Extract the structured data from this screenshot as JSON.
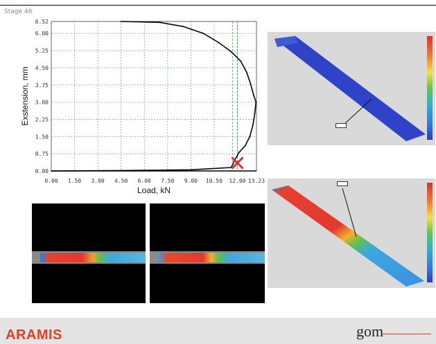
{
  "stage_label": "Stage 46",
  "brand": {
    "name": "ARAMIS",
    "logo_text": "gom",
    "accent_color": "#e0411f"
  },
  "chart_data": {
    "type": "line",
    "xlabel": "Load, kN",
    "ylabel": "Exstension, mm",
    "xlim": [
      0,
      13.23
    ],
    "ylim": [
      0,
      6.52
    ],
    "x_ticks": [
      "0.00",
      "1.50",
      "3.00",
      "4.50",
      "6.00",
      "7.50",
      "9.00",
      "10.50",
      "12.00",
      "13.23"
    ],
    "y_ticks": [
      "0.00",
      "0.75",
      "1.50",
      "2.25",
      "3.00",
      "3.75",
      "4.50",
      "5.25",
      "6.00",
      "6.52"
    ],
    "grid": true,
    "series": [
      {
        "color": "#000000",
        "points": [
          [
            4.5,
            6.52
          ],
          [
            7.0,
            6.48
          ],
          [
            8.5,
            6.3
          ],
          [
            9.8,
            6.0
          ],
          [
            10.8,
            5.6
          ],
          [
            11.6,
            5.2
          ],
          [
            12.2,
            4.8
          ],
          [
            12.6,
            4.3
          ],
          [
            12.85,
            3.8
          ],
          [
            13.05,
            3.3
          ],
          [
            13.2,
            3.0
          ],
          [
            13.12,
            2.5
          ],
          [
            13.0,
            2.0
          ],
          [
            12.8,
            1.5
          ],
          [
            12.5,
            1.1
          ],
          [
            12.1,
            0.8
          ],
          [
            11.85,
            0.5
          ],
          [
            11.6,
            0.15
          ],
          [
            9.0,
            0.05
          ],
          [
            5.0,
            0.02
          ],
          [
            0.0,
            0.0
          ]
        ]
      }
    ],
    "marker": {
      "x": 12.0,
      "y": 0.35,
      "symbol": "x",
      "color": "#e03030"
    },
    "reference_lines": [
      {
        "x": 11.7,
        "color": "#3a9d3a"
      },
      {
        "x": 12.0,
        "color": "#3a9d3a"
      }
    ]
  }
}
